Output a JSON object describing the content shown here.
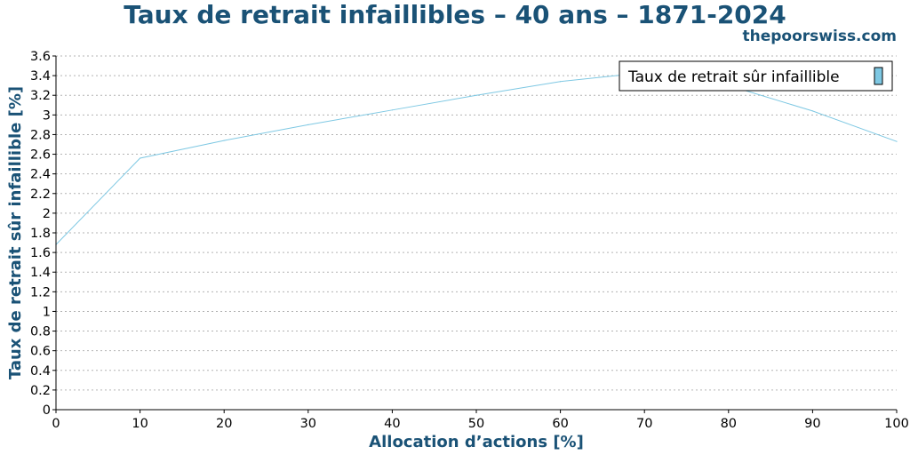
{
  "chart_data": {
    "type": "line",
    "title": "Taux de retrait infaillibles – 40 ans – 1871-2024",
    "subtitle": "thepoorswiss.com",
    "xlabel": "Allocation d’actions [%]",
    "ylabel": "Taux de retrait sûr infaillible [%]",
    "xlim": [
      0,
      100
    ],
    "ylim": [
      0,
      3.6
    ],
    "x_ticks": [
      "0",
      "10",
      "20",
      "30",
      "40",
      "50",
      "60",
      "70",
      "80",
      "90",
      "100"
    ],
    "y_ticks": [
      "0",
      "0.2",
      "0.4",
      "0.6",
      "0.8",
      "1",
      "1.2",
      "1.4",
      "1.6",
      "1.8",
      "2",
      "2.2",
      "2.4",
      "2.6",
      "2.8",
      "3",
      "3.2",
      "3.4",
      "3.6"
    ],
    "grid": "horizontal-dotted",
    "legend_position": "top-right",
    "series": [
      {
        "name": "Taux de retrait sûr infaillible",
        "color": "#7ec8e3",
        "x": [
          0,
          10,
          20,
          30,
          40,
          50,
          60,
          70,
          80,
          90,
          100
        ],
        "y": [
          1.68,
          2.56,
          2.74,
          2.9,
          3.05,
          3.2,
          3.34,
          3.43,
          3.3,
          3.04,
          2.73
        ]
      }
    ]
  }
}
